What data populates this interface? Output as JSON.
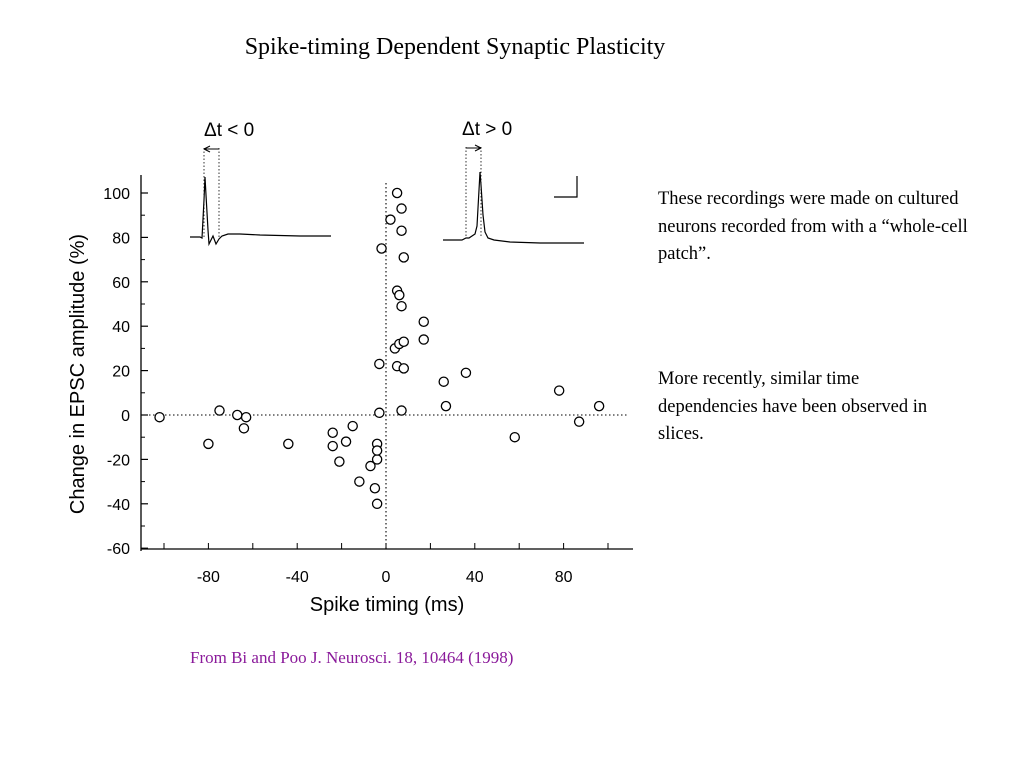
{
  "slide": {
    "title": "Spike-timing Dependent Synaptic Plasticity",
    "notes": [
      "These recordings were made on cultured neurons recorded from with a “whole-cell patch”.",
      "More recently, similar time dependencies have been observed in slices."
    ],
    "citation": "From Bi and Poo J. Neurosci. 18, 10464 (1998)",
    "citation_color": "#8a1a9a"
  },
  "insets": {
    "left_label": "Δt < 0",
    "right_label": "Δt > 0"
  },
  "chart_data": {
    "type": "scatter",
    "title": "",
    "xlabel": "Spike timing (ms)",
    "ylabel": "Change in EPSC amplitude (%)",
    "xlim": [
      -108,
      110
    ],
    "ylim": [
      -60,
      110
    ],
    "xticks": [
      -80,
      -40,
      0,
      40,
      80
    ],
    "yticks": [
      -60,
      -40,
      -20,
      0,
      20,
      40,
      60,
      80,
      100
    ],
    "reference_lines": "dotted lines at x = 0 and y = 0",
    "marker": "open circle",
    "points": [
      {
        "x": -102,
        "y": -1
      },
      {
        "x": -80,
        "y": -13
      },
      {
        "x": -75,
        "y": 2
      },
      {
        "x": -67,
        "y": 0
      },
      {
        "x": -64,
        "y": -6
      },
      {
        "x": -63,
        "y": -1
      },
      {
        "x": -44,
        "y": -13
      },
      {
        "x": -24,
        "y": -8
      },
      {
        "x": -24,
        "y": -14
      },
      {
        "x": -21,
        "y": -21
      },
      {
        "x": -18,
        "y": -12
      },
      {
        "x": -15,
        "y": -5
      },
      {
        "x": -12,
        "y": -30
      },
      {
        "x": -7,
        "y": -23
      },
      {
        "x": -5,
        "y": -33
      },
      {
        "x": -4,
        "y": -13
      },
      {
        "x": -4,
        "y": -20
      },
      {
        "x": -4,
        "y": -16
      },
      {
        "x": -4,
        "y": -40
      },
      {
        "x": -3,
        "y": 1
      },
      {
        "x": -3,
        "y": 23
      },
      {
        "x": -2,
        "y": 75
      },
      {
        "x": 2,
        "y": 88
      },
      {
        "x": 4,
        "y": 30
      },
      {
        "x": 5,
        "y": 100
      },
      {
        "x": 5,
        "y": 56
      },
      {
        "x": 5,
        "y": 22
      },
      {
        "x": 6,
        "y": 32
      },
      {
        "x": 6,
        "y": 54
      },
      {
        "x": 7,
        "y": 93
      },
      {
        "x": 7,
        "y": 83
      },
      {
        "x": 7,
        "y": 49
      },
      {
        "x": 7,
        "y": 2
      },
      {
        "x": 8,
        "y": 71
      },
      {
        "x": 8,
        "y": 21
      },
      {
        "x": 8,
        "y": 33
      },
      {
        "x": 17,
        "y": 34
      },
      {
        "x": 17,
        "y": 42
      },
      {
        "x": 26,
        "y": 15
      },
      {
        "x": 27,
        "y": 4
      },
      {
        "x": 36,
        "y": 19
      },
      {
        "x": 58,
        "y": -10
      },
      {
        "x": 78,
        "y": 11
      },
      {
        "x": 87,
        "y": -3
      },
      {
        "x": 96,
        "y": 4
      }
    ]
  }
}
